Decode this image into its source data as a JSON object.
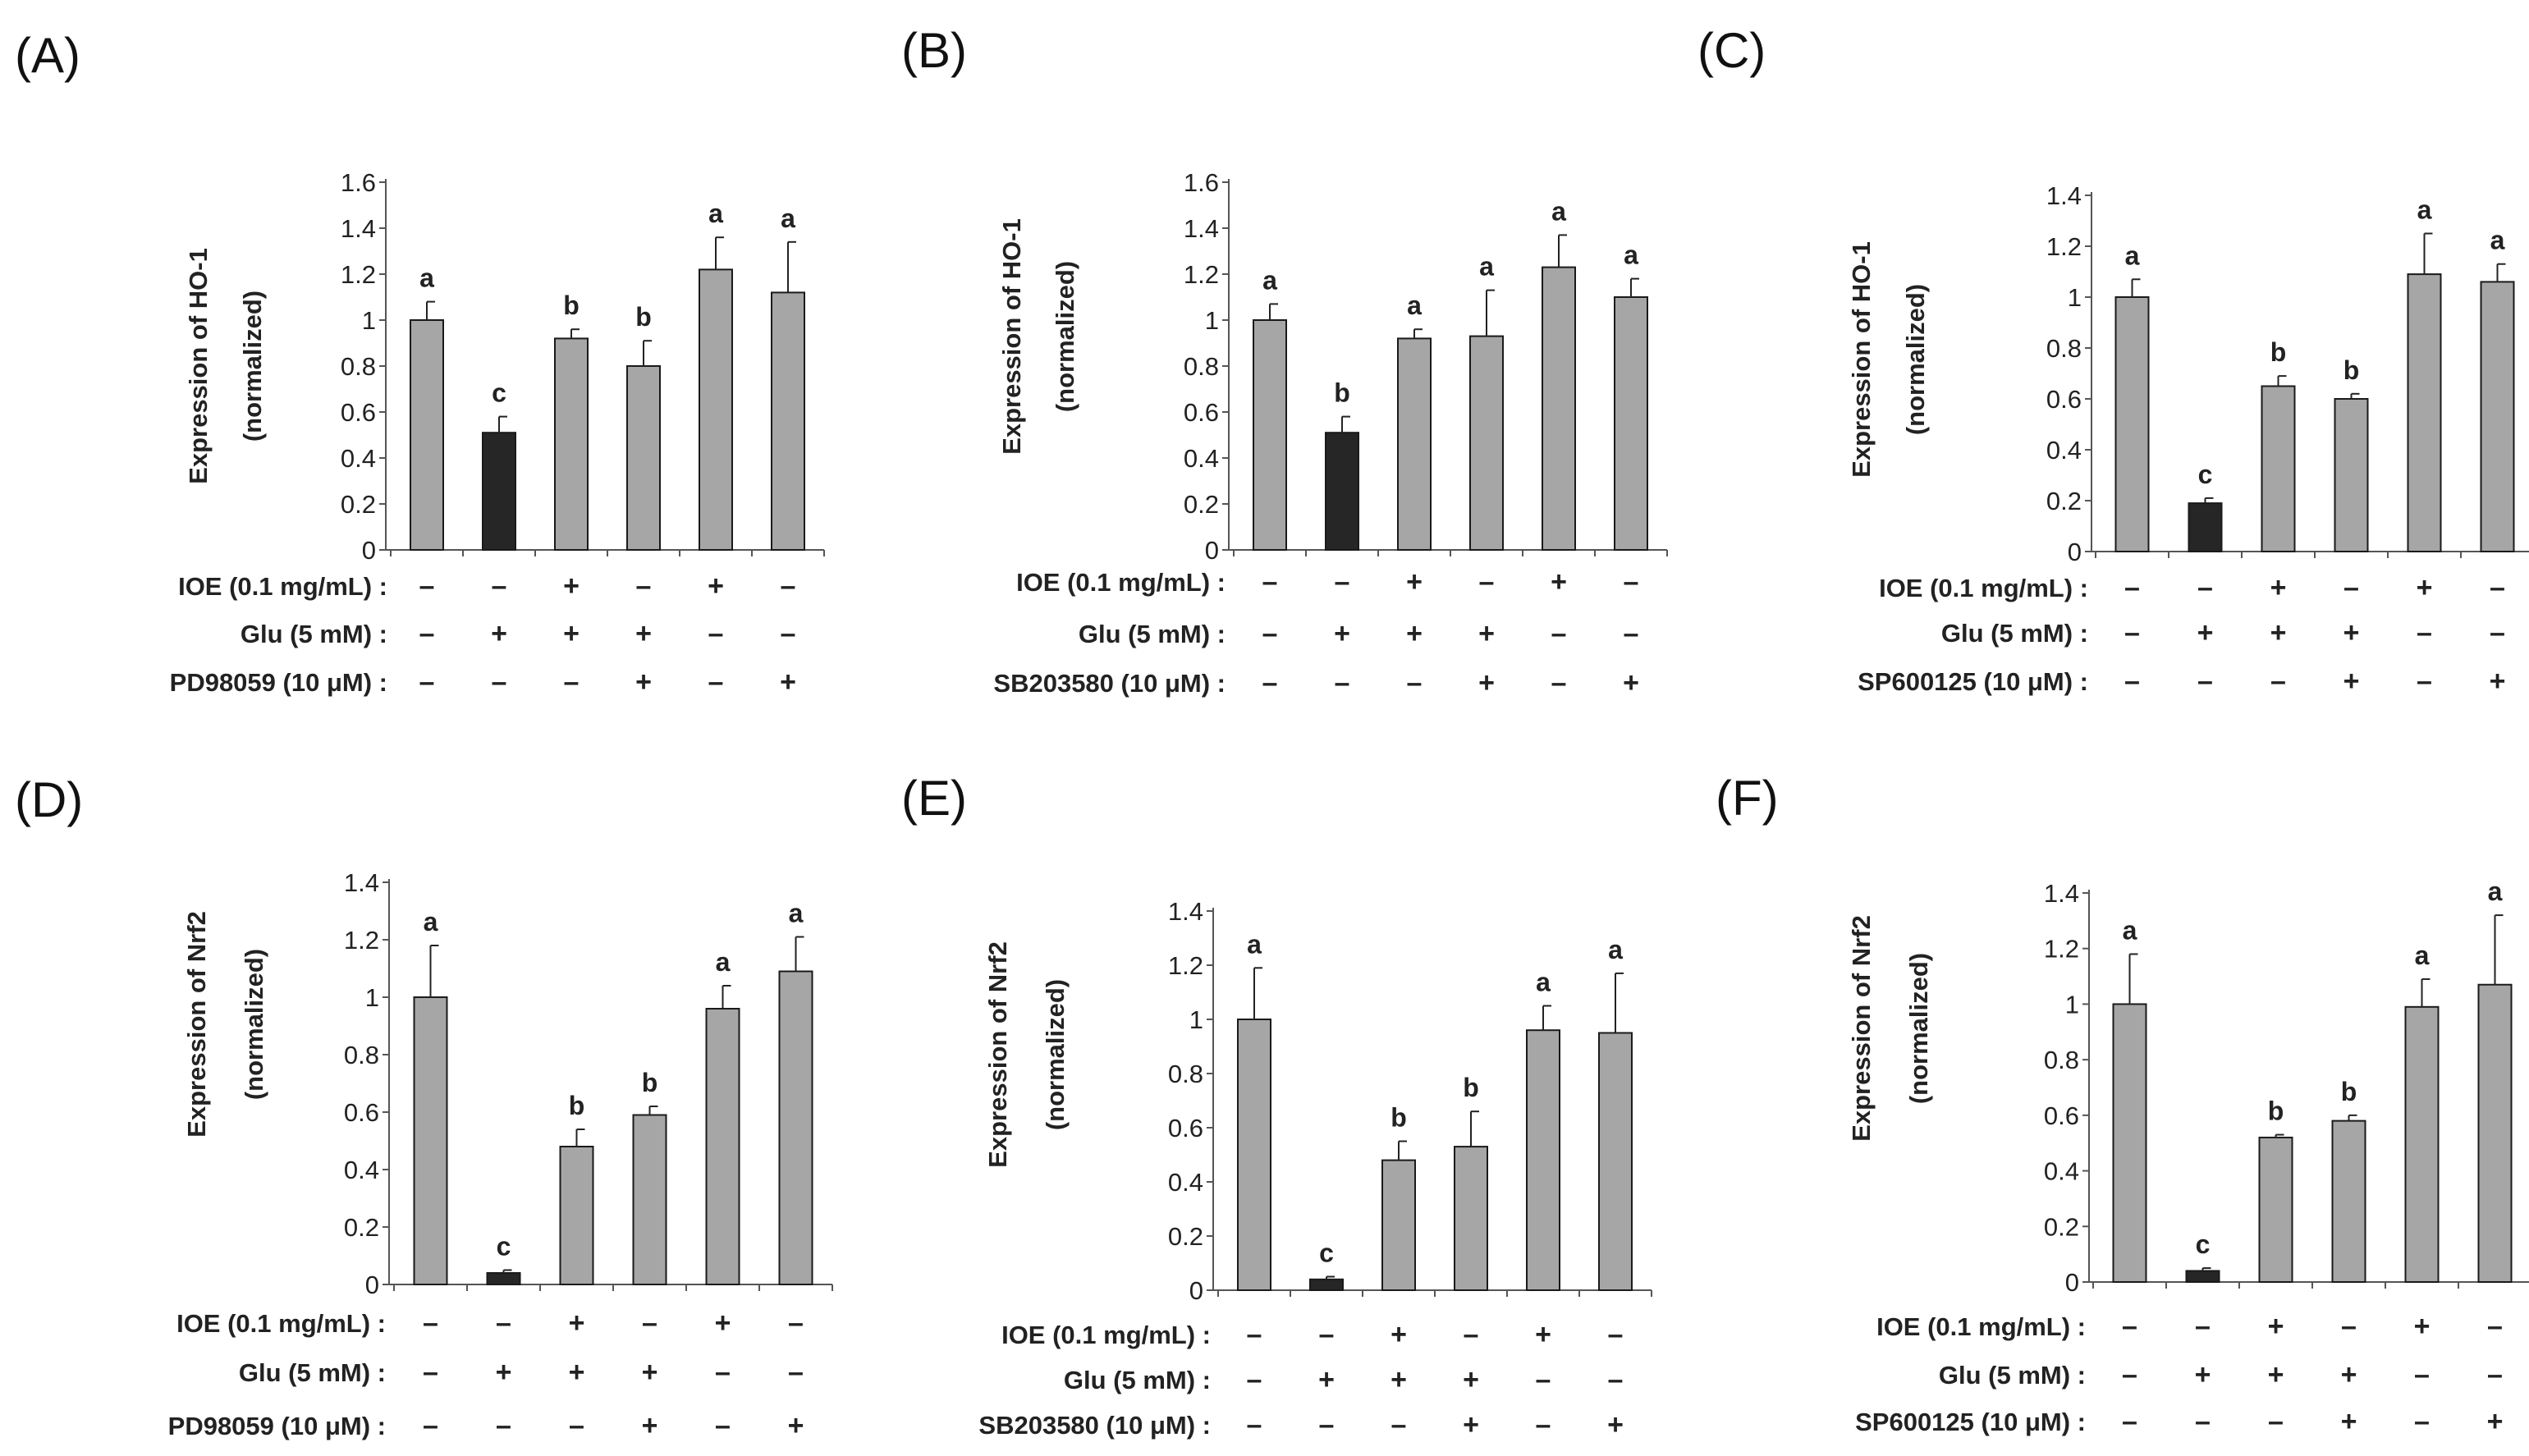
{
  "chart_data": [
    {
      "type": "bar",
      "panel_label": "(A)",
      "ylabel": [
        "Expression of HO-1",
        "(normalized)"
      ],
      "ylim": [
        0,
        1.6
      ],
      "yticks": [
        "0",
        "0.2",
        "0.4",
        "0.6",
        "0.8",
        "1",
        "1.2",
        "1.4",
        "1.6"
      ],
      "values": [
        1.0,
        0.51,
        0.92,
        0.8,
        1.22,
        1.12
      ],
      "errors": [
        0.08,
        0.07,
        0.04,
        0.11,
        0.14,
        0.22
      ],
      "letters": [
        "a",
        "c",
        "b",
        "b",
        "a",
        "a"
      ],
      "bar_colors": [
        "#a6a6a6",
        "#262626",
        "#a6a6a6",
        "#a6a6a6",
        "#a6a6a6",
        "#a6a6a6"
      ],
      "conditions": [
        {
          "label": "IOE (0.1 mg/mL) :",
          "signs": [
            "–",
            "–",
            "+",
            "–",
            "+",
            "–"
          ]
        },
        {
          "label": "Glu (5 mM) :",
          "signs": [
            "–",
            "+",
            "+",
            "+",
            "–",
            "–"
          ]
        },
        {
          "label": "PD98059 (10 μM) :",
          "signs": [
            "–",
            "–",
            "–",
            "+",
            "–",
            "+"
          ]
        }
      ]
    },
    {
      "type": "bar",
      "panel_label": "(B)",
      "ylabel": [
        "Expression of HO-1",
        "(normalized)"
      ],
      "ylim": [
        0,
        1.6
      ],
      "yticks": [
        "0",
        "0.2",
        "0.4",
        "0.6",
        "0.8",
        "1",
        "1.2",
        "1.4",
        "1.6"
      ],
      "values": [
        1.0,
        0.51,
        0.92,
        0.93,
        1.23,
        1.1
      ],
      "errors": [
        0.07,
        0.07,
        0.04,
        0.2,
        0.14,
        0.08
      ],
      "letters": [
        "a",
        "b",
        "a",
        "a",
        "a",
        "a"
      ],
      "bar_colors": [
        "#a6a6a6",
        "#262626",
        "#a6a6a6",
        "#a6a6a6",
        "#a6a6a6",
        "#a6a6a6"
      ],
      "conditions": [
        {
          "label": "IOE (0.1 mg/mL) :",
          "signs": [
            "–",
            "–",
            "+",
            "–",
            "+",
            "–"
          ]
        },
        {
          "label": "Glu (5 mM) :",
          "signs": [
            "–",
            "+",
            "+",
            "+",
            "–",
            "–"
          ]
        },
        {
          "label": "SB203580 (10 μM) :",
          "signs": [
            "–",
            "–",
            "–",
            "+",
            "–",
            "+"
          ]
        }
      ]
    },
    {
      "type": "bar",
      "panel_label": "(C)",
      "ylabel": [
        "Expression of HO-1",
        "(normalized)"
      ],
      "ylim": [
        0,
        1.4
      ],
      "yticks": [
        "0",
        "0.2",
        "0.4",
        "0.6",
        "0.8",
        "1",
        "1.2",
        "1.4"
      ],
      "values": [
        1.0,
        0.19,
        0.65,
        0.6,
        1.09,
        1.06
      ],
      "errors": [
        0.07,
        0.02,
        0.04,
        0.02,
        0.16,
        0.07
      ],
      "letters": [
        "a",
        "c",
        "b",
        "b",
        "a",
        "a"
      ],
      "bar_colors": [
        "#a6a6a6",
        "#262626",
        "#a6a6a6",
        "#a6a6a6",
        "#a6a6a6",
        "#a6a6a6"
      ],
      "conditions": [
        {
          "label": "IOE (0.1 mg/mL) :",
          "signs": [
            "–",
            "–",
            "+",
            "–",
            "+",
            "–"
          ]
        },
        {
          "label": "Glu (5 mM) :",
          "signs": [
            "–",
            "+",
            "+",
            "+",
            "–",
            "–"
          ]
        },
        {
          "label": "SP600125 (10 μM) :",
          "signs": [
            "–",
            "–",
            "–",
            "+",
            "–",
            "+"
          ]
        }
      ]
    },
    {
      "type": "bar",
      "panel_label": "(D)",
      "ylabel": [
        "Expression of Nrf2",
        "(normalized)"
      ],
      "ylim": [
        0,
        1.4
      ],
      "yticks": [
        "0",
        "0.2",
        "0.4",
        "0.6",
        "0.8",
        "1",
        "1.2",
        "1.4"
      ],
      "values": [
        1.0,
        0.04,
        0.48,
        0.59,
        0.96,
        1.09
      ],
      "errors": [
        0.18,
        0.01,
        0.06,
        0.03,
        0.08,
        0.12
      ],
      "letters": [
        "a",
        "c",
        "b",
        "b",
        "a",
        "a"
      ],
      "bar_colors": [
        "#a6a6a6",
        "#262626",
        "#a6a6a6",
        "#a6a6a6",
        "#a6a6a6",
        "#a6a6a6"
      ],
      "conditions": [
        {
          "label": "IOE (0.1 mg/mL) :",
          "signs": [
            "–",
            "–",
            "+",
            "–",
            "+",
            "–"
          ]
        },
        {
          "label": "Glu (5 mM) :",
          "signs": [
            "–",
            "+",
            "+",
            "+",
            "–",
            "–"
          ]
        },
        {
          "label": "PD98059 (10 μM) :",
          "signs": [
            "–",
            "–",
            "–",
            "+",
            "–",
            "+"
          ]
        }
      ]
    },
    {
      "type": "bar",
      "panel_label": "(E)",
      "ylabel": [
        "Expression of Nrf2",
        "(normalized)"
      ],
      "ylim": [
        0,
        1.4
      ],
      "yticks": [
        "0",
        "0.2",
        "0.4",
        "0.6",
        "0.8",
        "1",
        "1.2",
        "1.4"
      ],
      "values": [
        1.0,
        0.04,
        0.48,
        0.53,
        0.96,
        0.95
      ],
      "errors": [
        0.19,
        0.01,
        0.07,
        0.13,
        0.09,
        0.22
      ],
      "letters": [
        "a",
        "c",
        "b",
        "b",
        "a",
        "a"
      ],
      "bar_colors": [
        "#a6a6a6",
        "#262626",
        "#a6a6a6",
        "#a6a6a6",
        "#a6a6a6",
        "#a6a6a6"
      ],
      "conditions": [
        {
          "label": "IOE (0.1 mg/mL) :",
          "signs": [
            "–",
            "–",
            "+",
            "–",
            "+",
            "–"
          ]
        },
        {
          "label": "Glu (5 mM) :",
          "signs": [
            "–",
            "+",
            "+",
            "+",
            "–",
            "–"
          ]
        },
        {
          "label": "SB203580 (10 μM) :",
          "signs": [
            "–",
            "–",
            "–",
            "+",
            "–",
            "+"
          ]
        }
      ]
    },
    {
      "type": "bar",
      "panel_label": "(F)",
      "ylabel": [
        "Expression of Nrf2",
        "(normalized)"
      ],
      "ylim": [
        0,
        1.4
      ],
      "yticks": [
        "0",
        "0.2",
        "0.4",
        "0.6",
        "0.8",
        "1",
        "1.2",
        "1.4"
      ],
      "values": [
        1.0,
        0.04,
        0.52,
        0.58,
        0.99,
        1.07
      ],
      "errors": [
        0.18,
        0.01,
        0.01,
        0.02,
        0.1,
        0.25
      ],
      "letters": [
        "a",
        "c",
        "b",
        "b",
        "a",
        "a"
      ],
      "bar_colors": [
        "#a6a6a6",
        "#262626",
        "#a6a6a6",
        "#a6a6a6",
        "#a6a6a6",
        "#a6a6a6"
      ],
      "conditions": [
        {
          "label": "IOE (0.1 mg/mL) :",
          "signs": [
            "–",
            "–",
            "+",
            "–",
            "+",
            "–"
          ]
        },
        {
          "label": "Glu (5 mM) :",
          "signs": [
            "–",
            "+",
            "+",
            "+",
            "–",
            "–"
          ]
        },
        {
          "label": "SP600125 (10 μM) :",
          "signs": [
            "–",
            "–",
            "–",
            "+",
            "–",
            "+"
          ]
        }
      ]
    }
  ]
}
